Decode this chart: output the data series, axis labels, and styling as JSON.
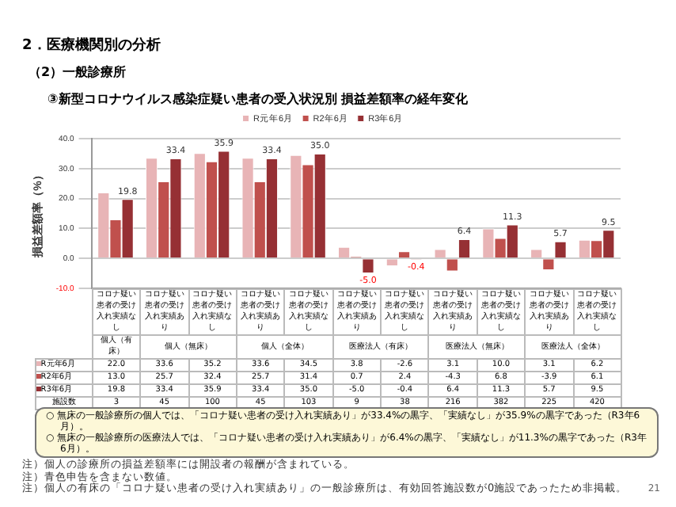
{
  "chart_data": {
    "type": "bar",
    "title": "③新型コロナウイルス感染症疑い患者の受入状況別 損益差額率の経年変化",
    "subtitle": "（2）一般診療所",
    "ylabel": "損益差額率（%）",
    "categories": [
      "コロナ疑い患者の受け入れ実績なし",
      "コロナ疑い患者の受け入れ実績あり",
      "コロナ疑い患者の受け入れ実績なし",
      "コロナ疑い患者の受け入れ実績あり",
      "コロナ疑い患者の受け入れ実績なし",
      "コロナ疑い患者の受け入れ実績あり",
      "コロナ疑い患者の受け入れ実績なし",
      "コロナ疑い患者の受け入れ実績あり",
      "コロナ疑い患者の受け入れ実績なし",
      "コロナ疑い患者の受け入れ実績あり",
      "コロナ疑い患者の受け入れ実績なし"
    ],
    "series": [
      {
        "name": "R元年6月",
        "color": "#e8b4b6",
        "values": [
          22.0,
          33.6,
          35.2,
          33.6,
          34.5,
          3.8,
          -2.6,
          3.1,
          10.0,
          3.1,
          6.2
        ],
        "value_labels": [
          "22.0",
          "33.6",
          "35.2",
          "33.6",
          "34.5",
          "3.8",
          "-2.6",
          "3.1",
          "10.0",
          "3.1",
          "6.2"
        ]
      },
      {
        "name": "R2年6月",
        "color": "#c0504d",
        "values": [
          13.0,
          25.7,
          32.4,
          25.7,
          31.4,
          0.7,
          2.4,
          -4.3,
          6.8,
          -3.9,
          6.1
        ],
        "value_labels": [
          "13.0",
          "25.7",
          "32.4",
          "25.7",
          "31.4",
          "0.7",
          "2.4",
          "-4.3",
          "6.8",
          "-3.9",
          "6.1"
        ]
      },
      {
        "name": "R3年6月",
        "color": "#963034",
        "values": [
          19.8,
          33.4,
          35.9,
          33.4,
          35.0,
          -5.0,
          -0.4,
          6.4,
          11.3,
          5.7,
          9.5
        ],
        "value_labels": [
          "19.8",
          "33.4",
          "35.9",
          "33.4",
          "35.0",
          "-5.0",
          "-0.4",
          "6.4",
          "11.3",
          "5.7",
          "9.5"
        ]
      }
    ],
    "ylim": [
      -10,
      40
    ],
    "yticks": [
      {
        "value": -10,
        "label": "-10.0"
      },
      {
        "value": 0,
        "label": "0.0"
      },
      {
        "value": 10,
        "label": "10.0"
      },
      {
        "value": 20,
        "label": "20.0"
      },
      {
        "value": 30,
        "label": "30.0"
      },
      {
        "value": 40,
        "label": "40.0"
      }
    ],
    "grid": "y",
    "legend": "top",
    "annotations": [
      "2．医療機関別の分析",
      "個人（有床）",
      "個人（無床）",
      "個人（全体）",
      "医療法人（有床）",
      "医療法人（無床）",
      "医療法人（全体）",
      "施設数",
      "3",
      "45",
      "100",
      "45",
      "103",
      "9",
      "38",
      "216",
      "382",
      "225",
      "420",
      "○ 無床の一般診療所の個人では、「コロナ疑い患者の受け入れ実績あり」が33.4%の黒字、「実績なし」が35.9%の黒字であった（R3年6月）。",
      "○ 無床の一般診療所の医療法人では、「コロナ疑い患者の受け入れ実績あり」が6.4%の黒字、「実績なし」が11.3%の黒字であった（R3年6月）。",
      "注）個人の診療所の損益差額率には開設者の報酬が含まれている。",
      "注）青色申告を含まない数値。",
      "注）個人の有床の「コロナ疑い患者の受け入れ実績あり」の一般診療所は、有効回答施設数が0施設であったため非掲載。",
      "21"
    ]
  }
}
